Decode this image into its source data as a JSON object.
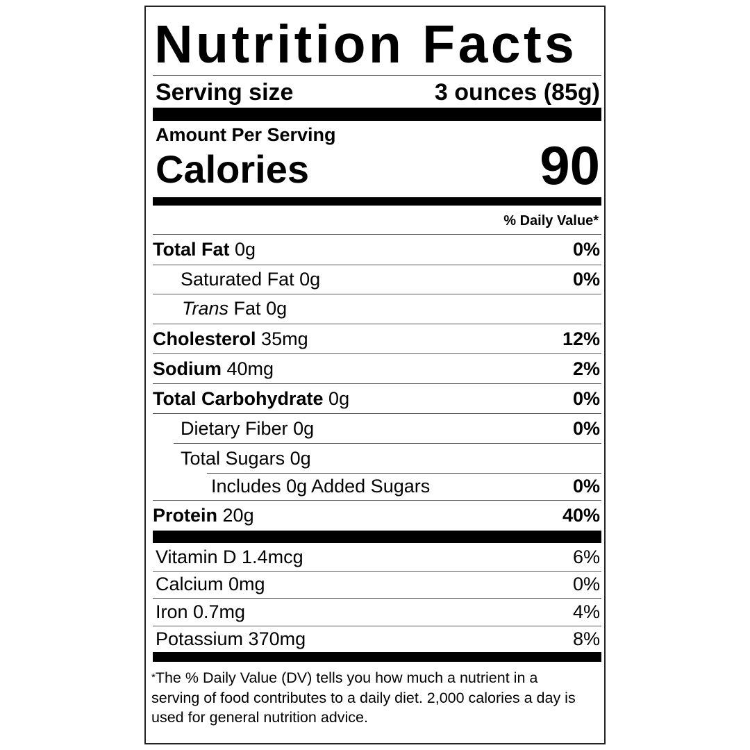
{
  "title": "Nutrition Facts",
  "serving": {
    "label": "Serving size",
    "value": "3 ounces (85g)"
  },
  "amount_per_serving": "Amount Per Serving",
  "calories": {
    "label": "Calories",
    "value": "90"
  },
  "dv_header": "% Daily Value*",
  "nutrients": [
    {
      "name": "Total Fat",
      "amount": "0g",
      "dv": "0%"
    },
    {
      "name": "Saturated Fat",
      "amount": "0g",
      "dv": "0%"
    },
    {
      "name": "Trans",
      "name_rest": "Fat",
      "amount": "0g",
      "dv": ""
    },
    {
      "name": "Cholesterol",
      "amount": "35mg",
      "dv": "12%"
    },
    {
      "name": "Sodium",
      "amount": "40mg",
      "dv": "2%"
    },
    {
      "name": "Total Carbohydrate",
      "amount": "0g",
      "dv": "0%"
    },
    {
      "name": "Dietary Fiber",
      "amount": "0g",
      "dv": "0%"
    },
    {
      "name": "Total Sugars",
      "amount": "0g",
      "dv": ""
    },
    {
      "name": "Includes 0g Added Sugars",
      "amount": "",
      "dv": "0%"
    },
    {
      "name": "Protein",
      "amount": "20g",
      "dv": "40%"
    }
  ],
  "vitamins": [
    {
      "name": "Vitamin D 1.4mcg",
      "dv": "6%"
    },
    {
      "name": "Calcium 0mg",
      "dv": "0%"
    },
    {
      "name": "Iron 0.7mg",
      "dv": "4%"
    },
    {
      "name": "Potassium 370mg",
      "dv": "8%"
    }
  ],
  "footnote": {
    "asterisk": "*",
    "text": "The % Daily Value (DV) tells you how much a nutrient in a serving of food contributes to a daily diet. 2,000 calories a day is used for general nutrition advice."
  }
}
